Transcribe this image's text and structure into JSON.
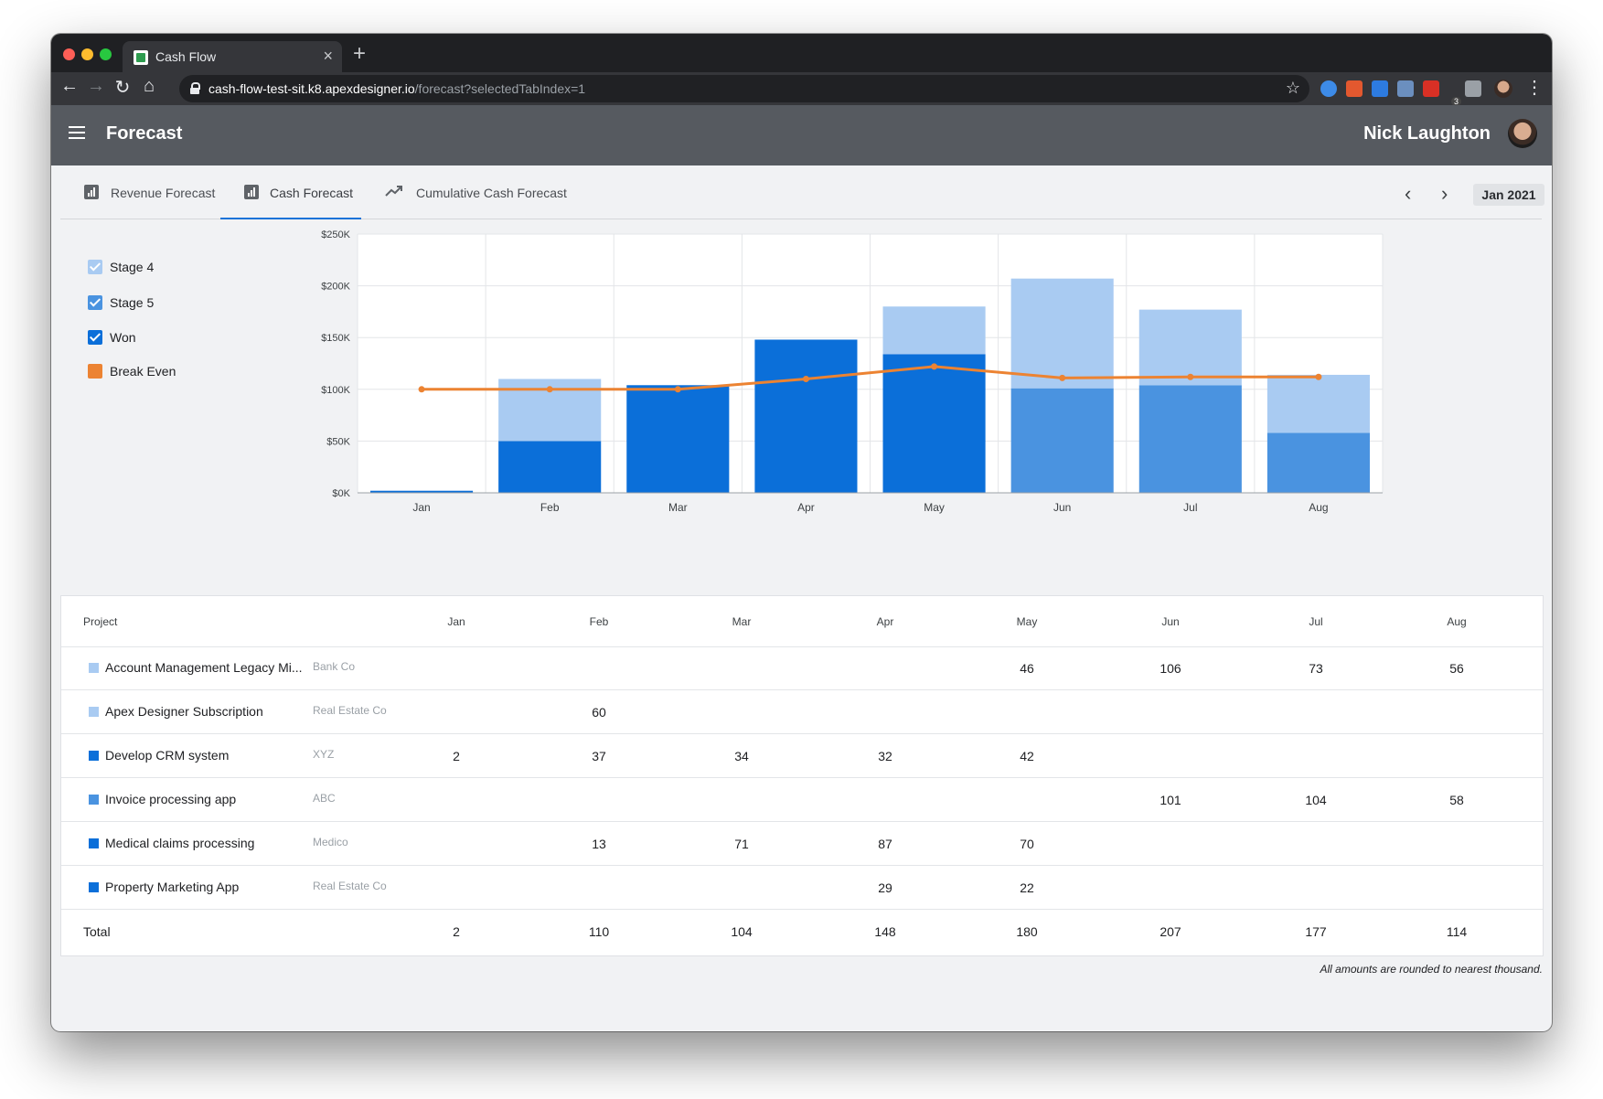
{
  "browser": {
    "tab_title": "Cash Flow",
    "url_host": "cash-flow-test-sit.k8.apexdesigner.io",
    "url_path": "/forecast?selectedTabIndex=1",
    "ext_badge": "3"
  },
  "app": {
    "title": "Forecast",
    "user_name": "Nick Laughton"
  },
  "tabs": [
    {
      "label": "Revenue Forecast",
      "icon": "bar-chart-icon",
      "active": false
    },
    {
      "label": "Cash Forecast",
      "icon": "bar-chart-icon",
      "active": true
    },
    {
      "label": "Cumulative Cash Forecast",
      "icon": "trending-up-icon",
      "active": false
    }
  ],
  "period": {
    "label": "Jan 2021"
  },
  "legend": [
    {
      "label": "Stage 4",
      "color": "#a9cbf2",
      "checked": true
    },
    {
      "label": "Stage 5",
      "color": "#4a93e0",
      "checked": true
    },
    {
      "label": "Won",
      "color": "#0b6fd9",
      "checked": true
    },
    {
      "label": "Break Even",
      "color": "#ec8332",
      "checked": false
    }
  ],
  "chart_data": {
    "type": "bar",
    "stacked": true,
    "categories": [
      "Jan",
      "Feb",
      "Mar",
      "Apr",
      "May",
      "Jun",
      "Jul",
      "Aug"
    ],
    "y_tick_labels": [
      "$0K",
      "$50K",
      "$100K",
      "$150K",
      "$200K",
      "$250K"
    ],
    "ylim": [
      0,
      250
    ],
    "series": [
      {
        "name": "Won",
        "color": "#0b6fd9",
        "values": [
          2,
          50,
          104,
          148,
          134,
          0,
          0,
          0
        ]
      },
      {
        "name": "Stage 5",
        "color": "#4a93e0",
        "values": [
          0,
          0,
          0,
          0,
          0,
          101,
          104,
          58
        ]
      },
      {
        "name": "Stage 4",
        "color": "#a9cbf2",
        "values": [
          0,
          60,
          0,
          0,
          46,
          106,
          73,
          56
        ]
      }
    ],
    "line": {
      "name": "Break Even",
      "color": "#ec8332",
      "values": [
        100,
        100,
        100,
        110,
        122,
        111,
        112,
        112
      ]
    },
    "grid": true
  },
  "table": {
    "project_header": "Project",
    "months": [
      "Jan",
      "Feb",
      "Mar",
      "Apr",
      "May",
      "Jun",
      "Jul",
      "Aug"
    ],
    "rows": [
      {
        "name": "Account Management Legacy Mi...",
        "client": "Bank Co",
        "color": "#a9cbf2",
        "values": [
          "",
          "",
          "",
          "",
          "46",
          "106",
          "73",
          "56"
        ]
      },
      {
        "name": "Apex Designer Subscription",
        "client": "Real Estate Co",
        "color": "#a9cbf2",
        "values": [
          "",
          "60",
          "",
          "",
          "",
          "",
          "",
          ""
        ]
      },
      {
        "name": "Develop CRM system",
        "client": "XYZ",
        "color": "#0b6fd9",
        "values": [
          "2",
          "37",
          "34",
          "32",
          "42",
          "",
          "",
          ""
        ]
      },
      {
        "name": "Invoice processing app",
        "client": "ABC",
        "color": "#4a93e0",
        "values": [
          "",
          "",
          "",
          "",
          "",
          "101",
          "104",
          "58"
        ]
      },
      {
        "name": "Medical claims processing",
        "client": "Medico",
        "color": "#0b6fd9",
        "values": [
          "",
          "13",
          "71",
          "87",
          "70",
          "",
          "",
          ""
        ]
      },
      {
        "name": "Property Marketing App",
        "client": "Real Estate Co",
        "color": "#0b6fd9",
        "values": [
          "",
          "",
          "",
          "29",
          "22",
          "",
          "",
          ""
        ]
      }
    ],
    "total_label": "Total",
    "totals": [
      "2",
      "110",
      "104",
      "148",
      "180",
      "207",
      "177",
      "114"
    ]
  },
  "footnote": "All amounts are rounded to nearest thousand."
}
